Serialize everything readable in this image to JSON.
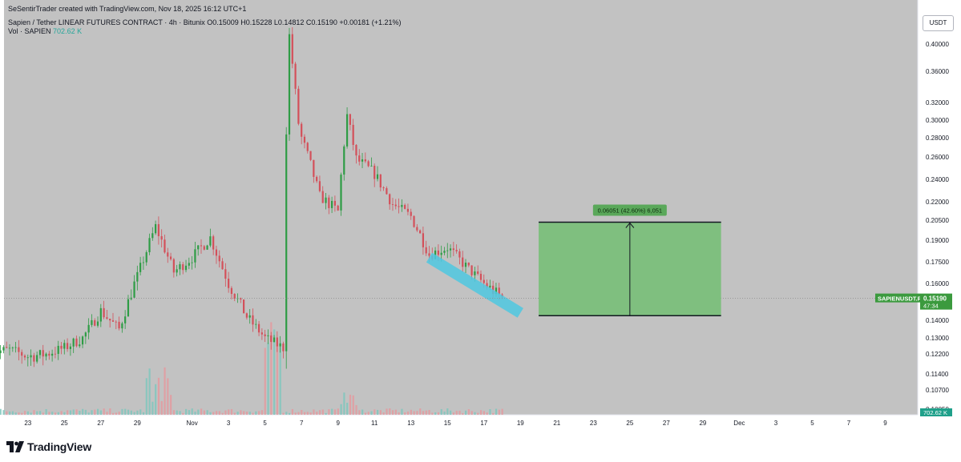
{
  "header": {
    "credit": "SeSentirTrader created with TradingView.com, Nov 18, 2025 16:12 UTC+1",
    "symbol_line": "Sapien / Tether LINEAR FUTURES CONTRACT · 4h · Bitunix",
    "ohlc": "O0.15009 H0.15228 L0.14812 C0.15190 +0.00181 (+1.21%)",
    "vol_label": "Vol · SAPIEN",
    "vol_value": "702.62 K"
  },
  "currency_badge": "USDT",
  "footer": {
    "brand": "TradingView"
  },
  "colors": {
    "background": "#c2c2c2",
    "up": "#2e9c45",
    "down": "#d3505a",
    "channel": "#4fc8e0",
    "target_box": "#7fbf7f",
    "price_badge": "#3b9a3e",
    "volume_badge": "#1fa08a"
  },
  "chart_data": {
    "type": "candlestick",
    "timeframe": "4h",
    "y_axis": {
      "ticks": [
        "0.40000",
        "0.36000",
        "0.32000",
        "0.30000",
        "0.28000",
        "0.26000",
        "0.24000",
        "0.22000",
        "0.20500",
        "0.19000",
        "0.17500",
        "0.16000",
        "0.14000",
        "0.13000",
        "0.12200",
        "0.11400",
        "0.10700",
        "0.10050"
      ],
      "range": [
        0.0995,
        0.43
      ]
    },
    "x_axis": {
      "ticks": [
        "23",
        "25",
        "27",
        "29",
        "Nov",
        "3",
        "5",
        "7",
        "9",
        "11",
        "13",
        "15",
        "17",
        "19",
        "21",
        "23",
        "25",
        "27",
        "29",
        "Dec",
        "3",
        "5",
        "7",
        "9"
      ],
      "range_days": [
        "Oct 21",
        "Dec 10"
      ]
    },
    "price_path": [
      [
        "Oct 21",
        0.123
      ],
      [
        "Oct 22",
        0.124
      ],
      [
        "Oct 23",
        0.121
      ],
      [
        "Oct 24",
        0.122
      ],
      [
        "Oct 25",
        0.125
      ],
      [
        "Oct 26",
        0.13
      ],
      [
        "Oct 27",
        0.145
      ],
      [
        "Oct 28",
        0.135
      ],
      [
        "Oct 29",
        0.165
      ],
      [
        "Oct 30",
        0.2
      ],
      [
        "Oct 31",
        0.168
      ],
      [
        "Nov 1",
        0.178
      ],
      [
        "Nov 2",
        0.192
      ],
      [
        "Nov 3",
        0.16
      ],
      [
        "Nov 4",
        0.142
      ],
      [
        "Nov 5",
        0.13
      ],
      [
        "Nov 6",
        0.125
      ],
      [
        "Nov 6.3",
        0.42
      ],
      [
        "Nov 6.8",
        0.3
      ],
      [
        "Nov 7",
        0.28
      ],
      [
        "Nov 8",
        0.225
      ],
      [
        "Nov 9",
        0.212
      ],
      [
        "Nov 9.5",
        0.305
      ],
      [
        "Nov 10",
        0.258
      ],
      [
        "Nov 11",
        0.245
      ],
      [
        "Nov 12",
        0.218
      ],
      [
        "Nov 13",
        0.208
      ],
      [
        "Nov 14",
        0.18
      ],
      [
        "Nov 15",
        0.185
      ],
      [
        "Nov 16",
        0.172
      ],
      [
        "Nov 17",
        0.16
      ],
      [
        "Nov 18",
        0.152
      ]
    ],
    "last_price": {
      "symbol": "SAPIENUSDT.P",
      "value": "0.15190",
      "countdown": "47:34"
    },
    "volume_label": "702.62 K",
    "annotations": {
      "channel": {
        "type": "descending channel",
        "from": [
          "Nov 14",
          0.178
        ],
        "to": [
          "Nov 19",
          0.144
        ]
      },
      "target_box": {
        "from_day": "Nov 20",
        "to_day": "Nov 30",
        "low": 0.1425,
        "high": 0.2035
      },
      "measure_label": "0.06051 (42.60%) 6,051"
    }
  }
}
